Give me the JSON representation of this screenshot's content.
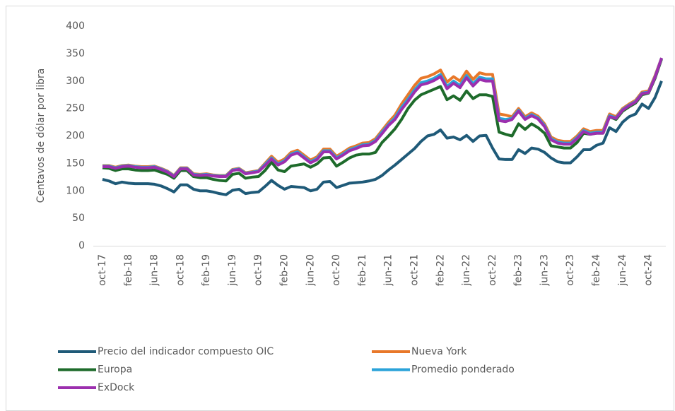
{
  "chart_data": {
    "type": "line",
    "ylabel": "Centavos de dólar por libra",
    "categories": [
      "oct-17",
      null,
      null,
      null,
      "feb-18",
      null,
      null,
      null,
      "jun-18",
      null,
      null,
      null,
      "oct-18",
      null,
      null,
      null,
      "feb-19",
      null,
      null,
      null,
      "jun-19",
      null,
      null,
      null,
      "oct-19",
      null,
      null,
      null,
      "feb-20",
      null,
      null,
      null,
      "jun-20",
      null,
      null,
      null,
      "oct-20",
      null,
      null,
      null,
      "feb-21",
      null,
      null,
      null,
      "jun-21",
      null,
      null,
      null,
      "oct-21",
      null,
      null,
      null,
      "feb-22",
      null,
      null,
      null,
      "jun-22",
      null,
      null,
      null,
      "oct-22",
      null,
      null,
      null,
      "feb-23",
      null,
      null,
      null,
      "jun-23",
      null,
      null,
      null,
      "oct-23",
      null,
      null,
      null,
      "feb-24",
      null,
      null,
      null,
      "jun-24",
      null,
      null,
      null,
      "oct-24",
      null,
      null
    ],
    "ylim": [
      0,
      400
    ],
    "yticks": [
      0,
      50,
      100,
      150,
      200,
      250,
      300,
      350,
      400
    ],
    "grid": false,
    "series": [
      {
        "name": "Precio del indicador compuesto OIC",
        "color": "#1f5a78",
        "values": [
          121,
          118,
          113,
          116,
          114,
          113,
          113,
          113,
          112,
          109,
          104,
          98,
          111,
          111,
          103,
          100,
          100,
          98,
          95,
          93,
          101,
          103,
          95,
          97,
          98,
          108,
          119,
          110,
          103,
          108,
          107,
          106,
          100,
          103,
          116,
          117,
          106,
          110,
          114,
          115,
          116,
          118,
          121,
          128,
          138,
          147,
          157,
          167,
          177,
          190,
          200,
          203,
          211,
          196,
          198,
          193,
          201,
          190,
          200,
          201,
          178,
          158,
          157,
          157,
          175,
          168,
          178,
          176,
          170,
          160,
          153,
          151,
          151,
          162,
          175,
          175,
          183,
          187,
          215,
          208,
          225,
          235,
          240,
          258,
          250,
          270,
          300
        ]
      },
      {
        "name": "Nueva York",
        "color": "#e8782a",
        "values": [
          146,
          146,
          143,
          146,
          147,
          145,
          144,
          144,
          145,
          141,
          136,
          128,
          142,
          142,
          131,
          130,
          131,
          129,
          128,
          128,
          139,
          141,
          133,
          135,
          137,
          150,
          163,
          152,
          158,
          170,
          174,
          165,
          156,
          162,
          176,
          176,
          163,
          170,
          178,
          182,
          187,
          188,
          195,
          210,
          225,
          238,
          258,
          275,
          292,
          305,
          308,
          313,
          320,
          298,
          308,
          300,
          318,
          303,
          315,
          312,
          312,
          240,
          238,
          235,
          250,
          235,
          242,
          236,
          222,
          198,
          192,
          190,
          190,
          200,
          213,
          208,
          210,
          210,
          240,
          235,
          250,
          258,
          265,
          280,
          282,
          310,
          342
        ]
      },
      {
        "name": "Europa",
        "color": "#1e6b2b",
        "values": [
          142,
          141,
          137,
          140,
          140,
          138,
          137,
          137,
          138,
          134,
          130,
          123,
          137,
          137,
          126,
          124,
          124,
          121,
          119,
          118,
          130,
          132,
          123,
          125,
          126,
          137,
          152,
          138,
          135,
          145,
          147,
          149,
          143,
          149,
          160,
          161,
          145,
          152,
          160,
          165,
          167,
          167,
          170,
          188,
          200,
          213,
          230,
          250,
          265,
          275,
          280,
          285,
          290,
          266,
          273,
          265,
          282,
          268,
          275,
          275,
          272,
          207,
          203,
          200,
          222,
          212,
          222,
          215,
          205,
          182,
          180,
          178,
          178,
          188,
          205,
          203,
          205,
          205,
          235,
          230,
          245,
          253,
          260,
          275,
          278,
          305,
          340
        ]
      },
      {
        "name": "Promedio ponderado",
        "color": "#2ba3d9",
        "values": [
          145,
          145,
          142,
          145,
          146,
          144,
          143,
          143,
          144,
          140,
          135,
          127,
          141,
          141,
          130,
          129,
          130,
          128,
          127,
          127,
          138,
          140,
          132,
          134,
          136,
          148,
          160,
          149,
          155,
          167,
          171,
          162,
          153,
          159,
          173,
          173,
          160,
          167,
          175,
          179,
          184,
          185,
          192,
          207,
          221,
          233,
          252,
          267,
          284,
          297,
          300,
          305,
          312,
          290,
          300,
          292,
          310,
          295,
          307,
          304,
          304,
          232,
          230,
          232,
          247,
          232,
          239,
          233,
          219,
          195,
          189,
          187,
          187,
          197,
          210,
          205,
          207,
          207,
          237,
          233,
          248,
          256,
          263,
          278,
          280,
          308,
          342
        ]
      },
      {
        "name": "ExDock",
        "color": "#9c2fae",
        "values": [
          144,
          144,
          141,
          144,
          145,
          143,
          142,
          142,
          143,
          139,
          134,
          126,
          140,
          140,
          129,
          128,
          129,
          127,
          126,
          126,
          137,
          139,
          131,
          133,
          135,
          146,
          158,
          147,
          153,
          165,
          169,
          160,
          151,
          157,
          171,
          171,
          158,
          165,
          173,
          177,
          182,
          183,
          190,
          204,
          219,
          230,
          248,
          263,
          280,
          293,
          296,
          301,
          308,
          286,
          296,
          288,
          306,
          291,
          303,
          300,
          300,
          228,
          226,
          230,
          245,
          230,
          237,
          231,
          217,
          193,
          187,
          185,
          185,
          195,
          208,
          203,
          205,
          205,
          235,
          232,
          247,
          255,
          262,
          277,
          279,
          307,
          342
        ]
      }
    ]
  }
}
